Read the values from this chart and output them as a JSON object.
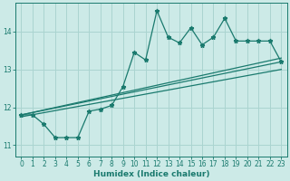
{
  "xlabel": "Humidex (Indice chaleur)",
  "ylabel": "",
  "background_color": "#cceae7",
  "grid_color": "#aad4d0",
  "line_color": "#1a7a6e",
  "xlim": [
    -0.5,
    23.5
  ],
  "ylim": [
    10.7,
    14.75
  ],
  "yticks": [
    11,
    12,
    13,
    14
  ],
  "xticks": [
    0,
    1,
    2,
    3,
    4,
    5,
    6,
    7,
    8,
    9,
    10,
    11,
    12,
    13,
    14,
    15,
    16,
    17,
    18,
    19,
    20,
    21,
    22,
    23
  ],
  "series1_x": [
    0,
    1,
    2,
    3,
    4,
    5,
    6,
    7,
    8,
    9,
    10,
    11,
    12,
    13,
    14,
    15,
    16,
    17,
    18,
    19,
    20,
    21,
    22,
    23
  ],
  "series1_y": [
    11.8,
    11.8,
    11.55,
    11.2,
    11.2,
    11.2,
    11.9,
    11.95,
    12.05,
    12.55,
    13.45,
    13.25,
    14.55,
    13.85,
    13.7,
    14.1,
    13.65,
    13.85,
    14.35,
    13.75,
    13.75,
    13.75,
    13.75,
    13.2
  ],
  "regline1_x": [
    0,
    23
  ],
  "regline1_y": [
    11.8,
    13.2
  ],
  "regline2_x": [
    0,
    23
  ],
  "regline2_y": [
    11.75,
    13.0
  ],
  "regline3_x": [
    0,
    23
  ],
  "regline3_y": [
    11.8,
    13.3
  ]
}
